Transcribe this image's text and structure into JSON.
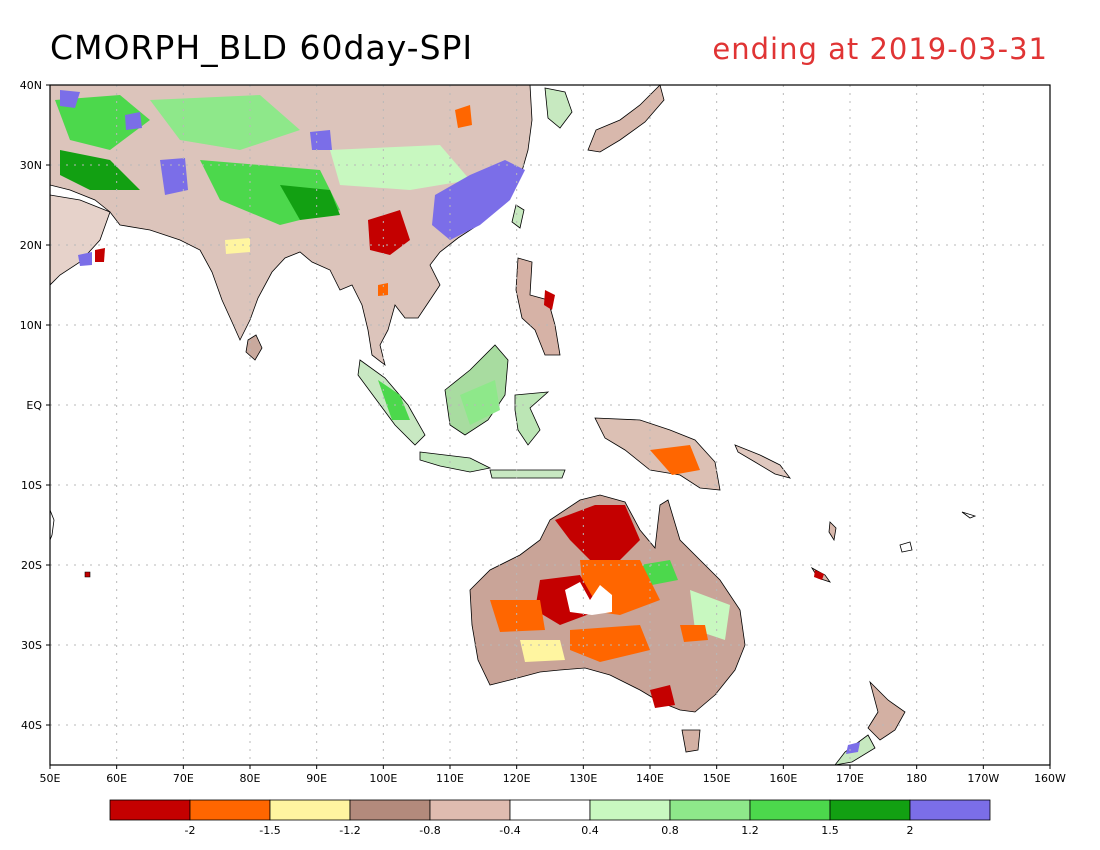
{
  "title": "CMORPH_BLD 60day-SPI",
  "subtitle": "ending at 2019-03-31",
  "map": {
    "lon_range": [
      50,
      200
    ],
    "lat_range": [
      -45,
      40
    ],
    "lat_ticks": [
      {
        "value": 40,
        "label": "40N"
      },
      {
        "value": 30,
        "label": "30N"
      },
      {
        "value": 20,
        "label": "20N"
      },
      {
        "value": 10,
        "label": "10N"
      },
      {
        "value": 0,
        "label": "EQ"
      },
      {
        "value": -10,
        "label": "10S"
      },
      {
        "value": -20,
        "label": "20S"
      },
      {
        "value": -30,
        "label": "30S"
      },
      {
        "value": -40,
        "label": "40S"
      }
    ],
    "lon_ticks": [
      {
        "value": 50,
        "label": "50E"
      },
      {
        "value": 60,
        "label": "60E"
      },
      {
        "value": 70,
        "label": "70E"
      },
      {
        "value": 80,
        "label": "80E"
      },
      {
        "value": 90,
        "label": "90E"
      },
      {
        "value": 100,
        "label": "100E"
      },
      {
        "value": 110,
        "label": "110E"
      },
      {
        "value": 120,
        "label": "120E"
      },
      {
        "value": 130,
        "label": "130E"
      },
      {
        "value": 140,
        "label": "140E"
      },
      {
        "value": 150,
        "label": "150E"
      },
      {
        "value": 160,
        "label": "160E"
      },
      {
        "value": 170,
        "label": "170E"
      },
      {
        "value": 180,
        "label": "180"
      },
      {
        "value": 190,
        "label": "170W"
      },
      {
        "value": 200,
        "label": "160W"
      }
    ]
  },
  "colorbar": {
    "colors": [
      "#c40000",
      "#ff6600",
      "#fff5a0",
      "#b38a7c",
      "#dfbcb0",
      "#ffffff",
      "#c8f8c0",
      "#8ee88a",
      "#4cd84c",
      "#12a012",
      "#7b6ee8"
    ],
    "labels": [
      "-2",
      "-1.5",
      "-1.2",
      "-0.8",
      "-0.4",
      "0.4",
      "0.8",
      "1.2",
      "1.5",
      "2"
    ]
  }
}
